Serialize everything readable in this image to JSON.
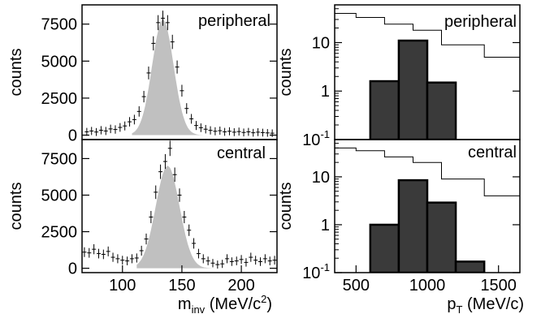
{
  "chart_data": [
    {
      "type": "scatter",
      "panel": "left-top",
      "title": "peripheral",
      "ylabel": "counts",
      "xlim": [
        66,
        230
      ],
      "ylim": [
        -300,
        8800
      ],
      "yticks": [
        0,
        2500,
        5000,
        7500
      ],
      "ytick_labels": [
        "0",
        "2500",
        "5000",
        "7500"
      ],
      "points": [
        [
          70,
          220
        ],
        [
          74,
          280
        ],
        [
          78,
          210
        ],
        [
          82,
          330
        ],
        [
          86,
          280
        ],
        [
          90,
          420
        ],
        [
          94,
          380
        ],
        [
          98,
          520
        ],
        [
          102,
          620
        ],
        [
          106,
          900
        ],
        [
          110,
          1050
        ],
        [
          114,
          1600
        ],
        [
          118,
          2600
        ],
        [
          122,
          4200
        ],
        [
          126,
          6200
        ],
        [
          130,
          7600
        ],
        [
          134,
          7900
        ],
        [
          138,
          7600
        ],
        [
          142,
          6300
        ],
        [
          146,
          4600
        ],
        [
          150,
          3000
        ],
        [
          154,
          1800
        ],
        [
          158,
          1100
        ],
        [
          162,
          650
        ],
        [
          166,
          500
        ],
        [
          170,
          400
        ],
        [
          174,
          320
        ],
        [
          178,
          260
        ],
        [
          182,
          300
        ],
        [
          186,
          220
        ],
        [
          190,
          260
        ],
        [
          194,
          200
        ],
        [
          198,
          240
        ],
        [
          202,
          180
        ],
        [
          206,
          220
        ],
        [
          210,
          160
        ],
        [
          214,
          200
        ],
        [
          218,
          170
        ],
        [
          222,
          150
        ],
        [
          226,
          130
        ]
      ],
      "peak_fit": {
        "mean": 134,
        "sigma": 9,
        "amplitude": 7800,
        "x_from": 108,
        "x_to": 168
      }
    },
    {
      "type": "scatter",
      "panel": "left-bottom",
      "title": "central",
      "ylabel": "counts",
      "xlabel": "m_inv (MeV/c^2)",
      "xlim": [
        66,
        230
      ],
      "ylim": [
        -300,
        8800
      ],
      "xticks": [
        100,
        150,
        200
      ],
      "xtick_labels": [
        "100",
        "150",
        "200"
      ],
      "yticks": [
        0,
        2500,
        5000,
        7500
      ],
      "ytick_labels": [
        "0",
        "2500",
        "5000",
        "7500"
      ],
      "points": [
        [
          68,
          1100
        ],
        [
          72,
          1050
        ],
        [
          76,
          1300
        ],
        [
          80,
          1000
        ],
        [
          84,
          950
        ],
        [
          88,
          1150
        ],
        [
          92,
          750
        ],
        [
          96,
          650
        ],
        [
          100,
          550
        ],
        [
          104,
          500
        ],
        [
          108,
          650
        ],
        [
          112,
          700
        ],
        [
          116,
          1200
        ],
        [
          120,
          2000
        ],
        [
          124,
          3500
        ],
        [
          128,
          5200
        ],
        [
          132,
          6600
        ],
        [
          136,
          7300
        ],
        [
          140,
          8200
        ],
        [
          144,
          6400
        ],
        [
          148,
          5000
        ],
        [
          152,
          3500
        ],
        [
          156,
          2600
        ],
        [
          160,
          1700
        ],
        [
          164,
          1000
        ],
        [
          168,
          650
        ],
        [
          172,
          500
        ],
        [
          176,
          350
        ],
        [
          180,
          250
        ],
        [
          184,
          300
        ],
        [
          188,
          650
        ],
        [
          192,
          450
        ],
        [
          196,
          500
        ],
        [
          200,
          600
        ],
        [
          204,
          400
        ],
        [
          208,
          750
        ],
        [
          212,
          550
        ],
        [
          216,
          450
        ],
        [
          220,
          650
        ],
        [
          224,
          500
        ],
        [
          228,
          550
        ]
      ],
      "peak_fit": {
        "mean": 138,
        "sigma": 10,
        "amplitude": 7000,
        "x_from": 112,
        "x_to": 178
      }
    },
    {
      "type": "histogram",
      "panel": "right-top",
      "title": "peripheral",
      "ylabel": "counts",
      "yscale": "log",
      "xlim": [
        350,
        1650
      ],
      "ylim": [
        0.1,
        60
      ],
      "yticks": [
        0.1,
        1,
        10
      ],
      "ytick_labels": [
        "10-1",
        "1",
        "10"
      ],
      "outline_bins": [
        [
          350,
          500,
          40
        ],
        [
          500,
          700,
          33
        ],
        [
          700,
          900,
          24
        ],
        [
          900,
          1100,
          18
        ],
        [
          1100,
          1400,
          9
        ],
        [
          1400,
          1650,
          5
        ]
      ],
      "filled_bins": [
        [
          600,
          800,
          1.6
        ],
        [
          800,
          1000,
          11
        ],
        [
          1000,
          1200,
          1.5
        ]
      ]
    },
    {
      "type": "histogram",
      "panel": "right-bottom",
      "title": "central",
      "ylabel": "counts",
      "xlabel": "p_T (MeV/c)",
      "yscale": "log",
      "xlim": [
        350,
        1650
      ],
      "ylim": [
        0.1,
        60
      ],
      "xticks": [
        500,
        1000,
        1500
      ],
      "xtick_labels": [
        "500",
        "1000",
        "1500"
      ],
      "yticks": [
        0.1,
        1,
        10
      ],
      "ytick_labels": [
        "10-1",
        "1",
        "10"
      ],
      "outline_bins": [
        [
          350,
          500,
          40
        ],
        [
          500,
          700,
          35
        ],
        [
          700,
          900,
          26
        ],
        [
          900,
          1100,
          20
        ],
        [
          1100,
          1400,
          9
        ],
        [
          1400,
          1650,
          4
        ]
      ],
      "filled_bins": [
        [
          600,
          800,
          1.0
        ],
        [
          800,
          1000,
          8.5
        ],
        [
          1000,
          1200,
          2.9
        ],
        [
          1200,
          1400,
          0.17
        ]
      ]
    }
  ]
}
